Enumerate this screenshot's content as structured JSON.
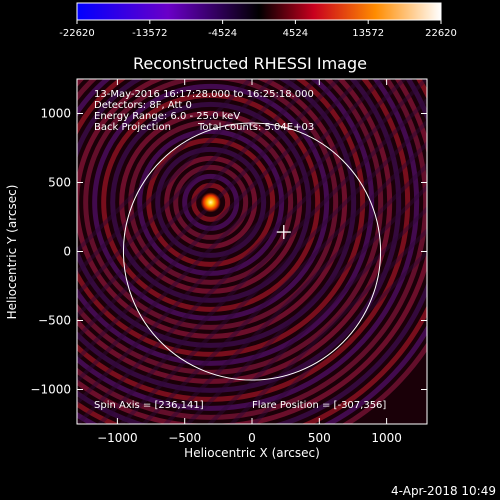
{
  "colorbar": {
    "ticks": [
      "-22620",
      "-13572",
      "-4524",
      "4524",
      "13572",
      "22620"
    ],
    "values": [
      -22620,
      -13572,
      -4524,
      4524,
      13572,
      22620
    ],
    "range": [
      -22620,
      22620
    ]
  },
  "chart_data": {
    "type": "heatmap",
    "title": "Reconstructed RHESSI Image",
    "xlabel": "Heliocentric X (arcsec)",
    "ylabel": "Heliocentric Y (arcsec)",
    "xlim": [
      -1300,
      1300
    ],
    "ylim": [
      -1250,
      1250
    ],
    "xticks": [
      -1000,
      -500,
      0,
      500,
      1000
    ],
    "xtick_labels": [
      "−1000",
      "−500",
      "0",
      "500",
      "1000"
    ],
    "yticks": [
      -1000,
      -500,
      0,
      500,
      1000
    ],
    "ytick_labels": [
      "−1000",
      "−500",
      "0",
      "500",
      "1000"
    ],
    "solar_limb_radius": 955,
    "source": {
      "x": -307,
      "y": 356
    },
    "spin_axis": {
      "x": 236,
      "y": 141
    },
    "info_lines": [
      "13-May-2016 16:17:28.000 to 16:25:18.000",
      "Detectors: 8F, Att 0",
      "Energy Range: 6.0 - 25.0 keV",
      "Back Projection"
    ],
    "total_counts": "Total counts: 5.04E+03",
    "spin_axis_label": "Spin Axis = [236,141]",
    "flare_position_label": "Flare Position = [-307,356]"
  },
  "footer": {
    "timestamp": "4-Apr-2018 10:49"
  }
}
